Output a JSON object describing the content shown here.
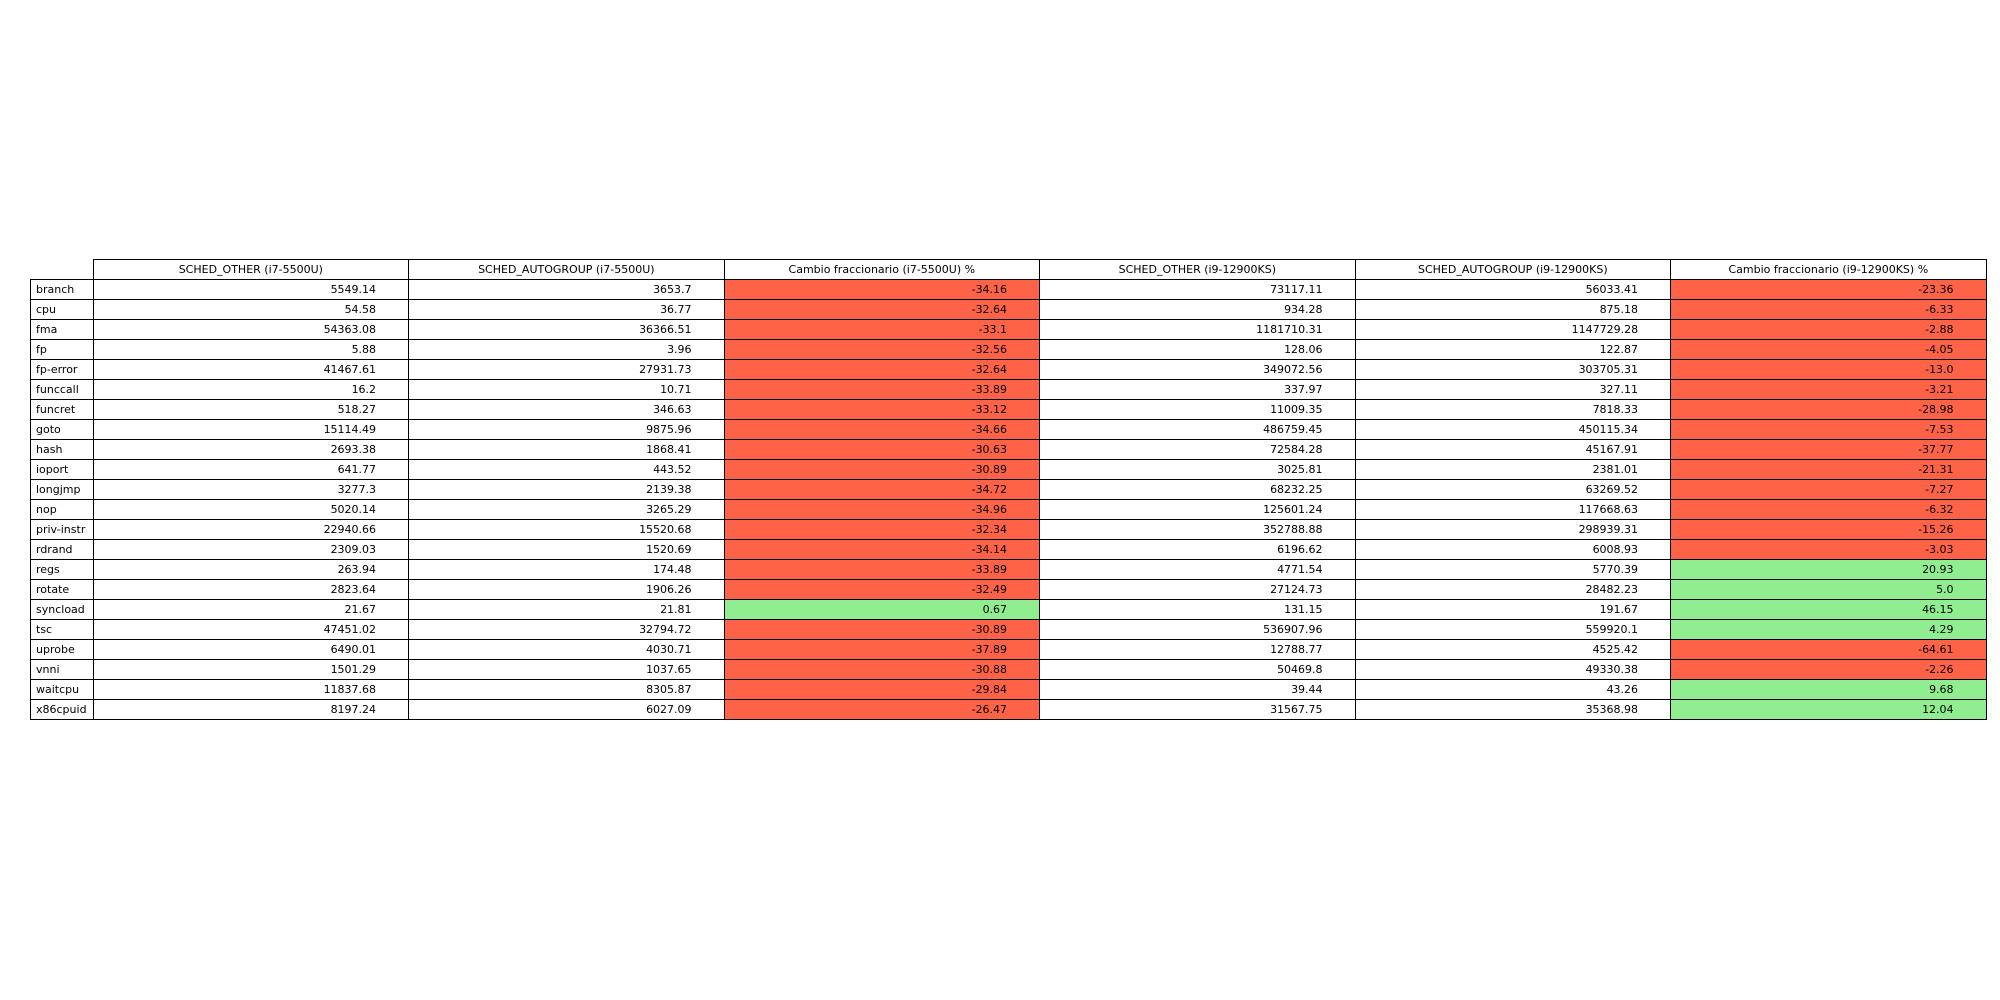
{
  "chart_data": {
    "type": "table",
    "columns": [
      "SCHED_OTHER (i7-5500U)",
      "SCHED_AUTOGROUP (i7-5500U)",
      "Cambio fraccionario (i7-5500U) %",
      "SCHED_OTHER (i9-12900KS)",
      "SCHED_AUTOGROUP (i9-12900KS)",
      "Cambio fraccionario (i9-12900KS) %"
    ],
    "highlighted_columns": [
      2,
      5
    ],
    "colors": {
      "negative": "#ff6347",
      "positive": "#90ee90"
    },
    "rows": [
      {
        "label": "branch",
        "values": [
          "5549.14",
          "3653.7",
          "-34.16",
          "73117.11",
          "56033.41",
          "-23.36"
        ]
      },
      {
        "label": "cpu",
        "values": [
          "54.58",
          "36.77",
          "-32.64",
          "934.28",
          "875.18",
          "-6.33"
        ]
      },
      {
        "label": "fma",
        "values": [
          "54363.08",
          "36366.51",
          "-33.1",
          "1181710.31",
          "1147729.28",
          "-2.88"
        ]
      },
      {
        "label": "fp",
        "values": [
          "5.88",
          "3.96",
          "-32.56",
          "128.06",
          "122.87",
          "-4.05"
        ]
      },
      {
        "label": "fp-error",
        "values": [
          "41467.61",
          "27931.73",
          "-32.64",
          "349072.56",
          "303705.31",
          "-13.0"
        ]
      },
      {
        "label": "funccall",
        "values": [
          "16.2",
          "10.71",
          "-33.89",
          "337.97",
          "327.11",
          "-3.21"
        ]
      },
      {
        "label": "funcret",
        "values": [
          "518.27",
          "346.63",
          "-33.12",
          "11009.35",
          "7818.33",
          "-28.98"
        ]
      },
      {
        "label": "goto",
        "values": [
          "15114.49",
          "9875.96",
          "-34.66",
          "486759.45",
          "450115.34",
          "-7.53"
        ]
      },
      {
        "label": "hash",
        "values": [
          "2693.38",
          "1868.41",
          "-30.63",
          "72584.28",
          "45167.91",
          "-37.77"
        ]
      },
      {
        "label": "ioport",
        "values": [
          "641.77",
          "443.52",
          "-30.89",
          "3025.81",
          "2381.01",
          "-21.31"
        ]
      },
      {
        "label": "longjmp",
        "values": [
          "3277.3",
          "2139.38",
          "-34.72",
          "68232.25",
          "63269.52",
          "-7.27"
        ]
      },
      {
        "label": "nop",
        "values": [
          "5020.14",
          "3265.29",
          "-34.96",
          "125601.24",
          "117668.63",
          "-6.32"
        ]
      },
      {
        "label": "priv-instr",
        "values": [
          "22940.66",
          "15520.68",
          "-32.34",
          "352788.88",
          "298939.31",
          "-15.26"
        ]
      },
      {
        "label": "rdrand",
        "values": [
          "2309.03",
          "1520.69",
          "-34.14",
          "6196.62",
          "6008.93",
          "-3.03"
        ]
      },
      {
        "label": "regs",
        "values": [
          "263.94",
          "174.48",
          "-33.89",
          "4771.54",
          "5770.39",
          "20.93"
        ]
      },
      {
        "label": "rotate",
        "values": [
          "2823.64",
          "1906.26",
          "-32.49",
          "27124.73",
          "28482.23",
          "5.0"
        ]
      },
      {
        "label": "syncload",
        "values": [
          "21.67",
          "21.81",
          "0.67",
          "131.15",
          "191.67",
          "46.15"
        ]
      },
      {
        "label": "tsc",
        "values": [
          "47451.02",
          "32794.72",
          "-30.89",
          "536907.96",
          "559920.1",
          "4.29"
        ]
      },
      {
        "label": "uprobe",
        "values": [
          "6490.01",
          "4030.71",
          "-37.89",
          "12788.77",
          "4525.42",
          "-64.61"
        ]
      },
      {
        "label": "vnni",
        "values": [
          "1501.29",
          "1037.65",
          "-30.88",
          "50469.8",
          "49330.38",
          "-2.26"
        ]
      },
      {
        "label": "waitcpu",
        "values": [
          "11837.68",
          "8305.87",
          "-29.84",
          "39.44",
          "43.26",
          "9.68"
        ]
      },
      {
        "label": "x86cpuid",
        "values": [
          "8197.24",
          "6027.09",
          "-26.47",
          "31567.75",
          "35368.98",
          "12.04"
        ]
      }
    ]
  }
}
